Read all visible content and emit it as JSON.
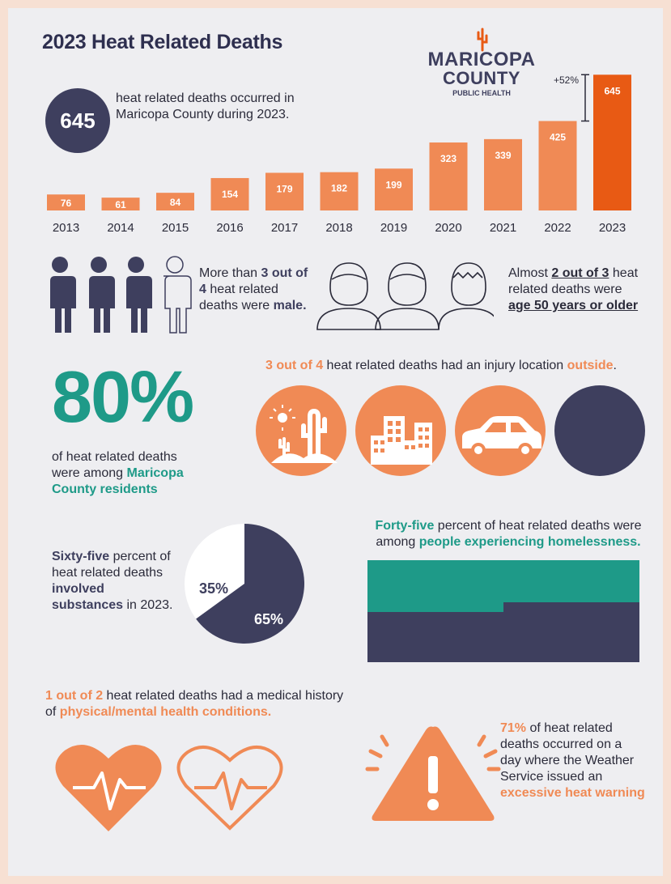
{
  "title": "2023 Heat Related Deaths",
  "logo": {
    "line1": "MARICOPA",
    "line2": "COUNTY",
    "line3": "PUBLIC HEALTH"
  },
  "intro": {
    "number": "645",
    "text": "heat related deaths occurred in Maricopa County during 2023."
  },
  "chart_data": {
    "type": "bar",
    "categories": [
      "2013",
      "2014",
      "2015",
      "2016",
      "2017",
      "2018",
      "2019",
      "2020",
      "2021",
      "2022",
      "2023"
    ],
    "values": [
      76,
      61,
      84,
      154,
      179,
      182,
      199,
      323,
      339,
      425,
      645
    ],
    "annotation": "+52%",
    "colors": {
      "bar": "#f08a55",
      "highlight": "#e85a14"
    }
  },
  "male": {
    "pre": "More than ",
    "highlight": "3 out of 4",
    "mid": " heat related deaths were ",
    "end": "male."
  },
  "age": {
    "pre": "Almost ",
    "highlight": "2 out of 3",
    "mid": " heat related deaths were ",
    "end": "age 50 years or older"
  },
  "residents": {
    "big": "80%",
    "pre": "of heat related deaths were among ",
    "highlight": "Maricopa County residents"
  },
  "outside": {
    "highlight1": "3 out of 4",
    "mid": " heat related deaths had an injury location ",
    "highlight2": "outside",
    "end": "."
  },
  "substances": {
    "highlight": "Sixty-five",
    "mid": " percent of heat related deaths ",
    "bold": "involved substances",
    "end": " in 2023.",
    "pie": [
      {
        "label": "65%",
        "value": 65
      },
      {
        "label": "35%",
        "value": 35
      }
    ]
  },
  "homeless": {
    "highlight1": "Forty-five",
    "mid": " percent of heat related deaths were among ",
    "highlight2": "people experiencing homelessness.",
    "value": 45
  },
  "medical": {
    "highlight1": "1 out of 2",
    "mid": " heat related deaths had a medical history of ",
    "highlight2": "physical/mental health conditions."
  },
  "warning": {
    "highlight1": "71%",
    "mid": " of heat related deaths occurred on a day where the Weather Service issued an ",
    "highlight2": "excessive heat warning"
  },
  "icons": {
    "people": "person-icon",
    "heads": "head-icon",
    "cactus": "cactus-icon",
    "buildings": "buildings-icon",
    "car": "car-icon",
    "heart": "heart-icon",
    "warning": "warning-icon"
  },
  "colors": {
    "navy": "#3e3f5e",
    "orange": "#f08a55",
    "teal": "#1e9a88"
  }
}
